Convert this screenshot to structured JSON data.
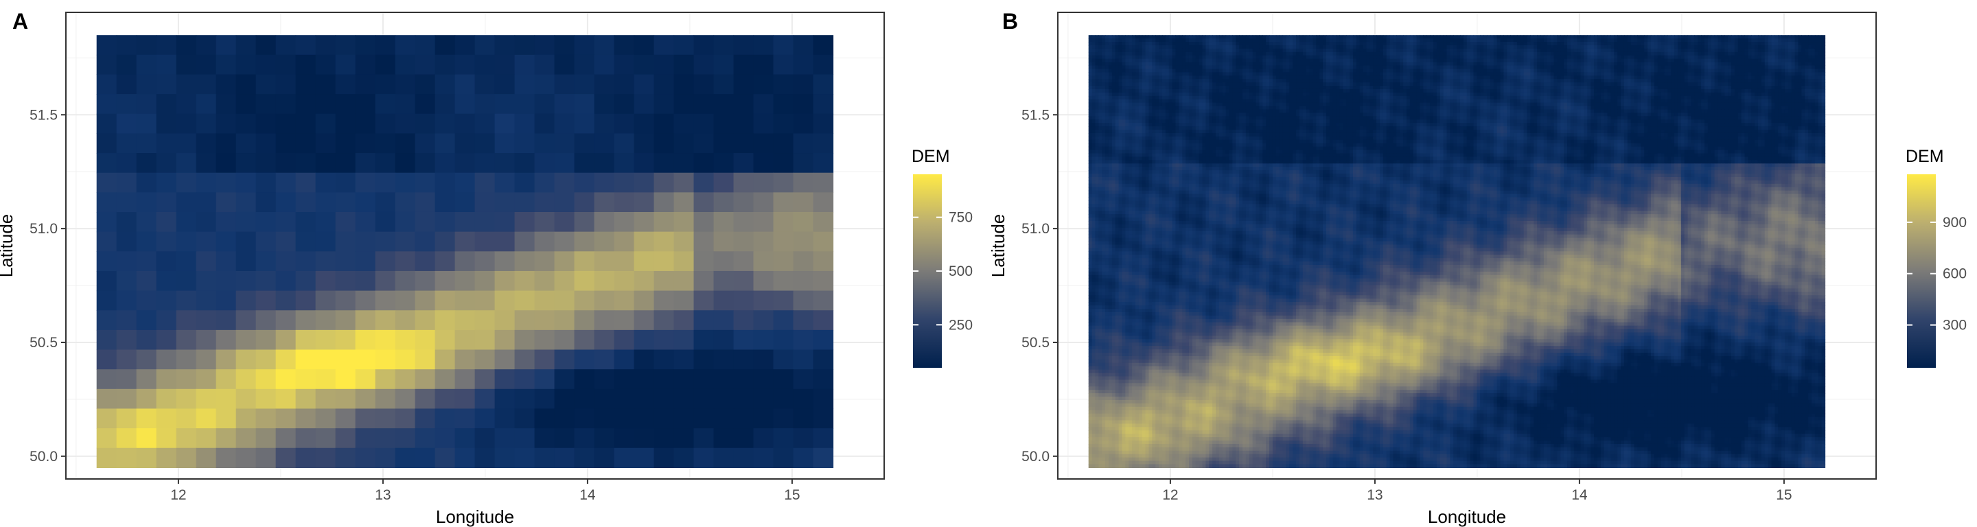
{
  "panels": [
    {
      "label": "A",
      "chart_data": {
        "type": "heatmap",
        "xlabel": "Longitude",
        "ylabel": "Latitude",
        "xlim": [
          11.45,
          15.45
        ],
        "ylim": [
          49.9,
          51.95
        ],
        "x_ticks": [
          12,
          13,
          14,
          15
        ],
        "x_tick_labels": [
          "12",
          "13",
          "14",
          "15"
        ],
        "y_ticks": [
          50.0,
          50.5,
          51.0,
          51.5
        ],
        "y_tick_labels": [
          "50.0",
          "50.5",
          "51.0",
          "51.5"
        ],
        "raster_extent": {
          "lon": [
            11.6,
            15.2
          ],
          "lat": [
            49.95,
            51.85
          ]
        },
        "grid": true,
        "legend": {
          "title": "DEM",
          "position": "right",
          "range": [
            50,
            950
          ],
          "ticks": [
            250,
            500,
            750
          ],
          "tick_labels": [
            "250",
            "500",
            "750"
          ]
        },
        "colors": {
          "low": "#00204d",
          "mid": "#7c7b78",
          "high": "#ffea46"
        },
        "resolution": "coarse"
      }
    },
    {
      "label": "B",
      "chart_data": {
        "type": "heatmap",
        "xlabel": "Longitude",
        "ylabel": "Latitude",
        "xlim": [
          11.45,
          15.45
        ],
        "ylim": [
          49.9,
          51.95
        ],
        "x_ticks": [
          12,
          13,
          14,
          15
        ],
        "x_tick_labels": [
          "12",
          "13",
          "14",
          "15"
        ],
        "y_ticks": [
          50.0,
          50.5,
          51.0,
          51.5
        ],
        "y_tick_labels": [
          "50.0",
          "50.5",
          "51.0",
          "51.5"
        ],
        "raster_extent": {
          "lon": [
            11.6,
            15.2
          ],
          "lat": [
            49.95,
            51.85
          ]
        },
        "grid": true,
        "legend": {
          "title": "DEM",
          "position": "right",
          "range": [
            50,
            1180
          ],
          "ticks": [
            300,
            600,
            900
          ],
          "tick_labels": [
            "300",
            "600",
            "900"
          ]
        },
        "colors": {
          "low": "#00204d",
          "mid": "#7c7b78",
          "high": "#ffea46"
        },
        "resolution": "fine"
      }
    }
  ]
}
